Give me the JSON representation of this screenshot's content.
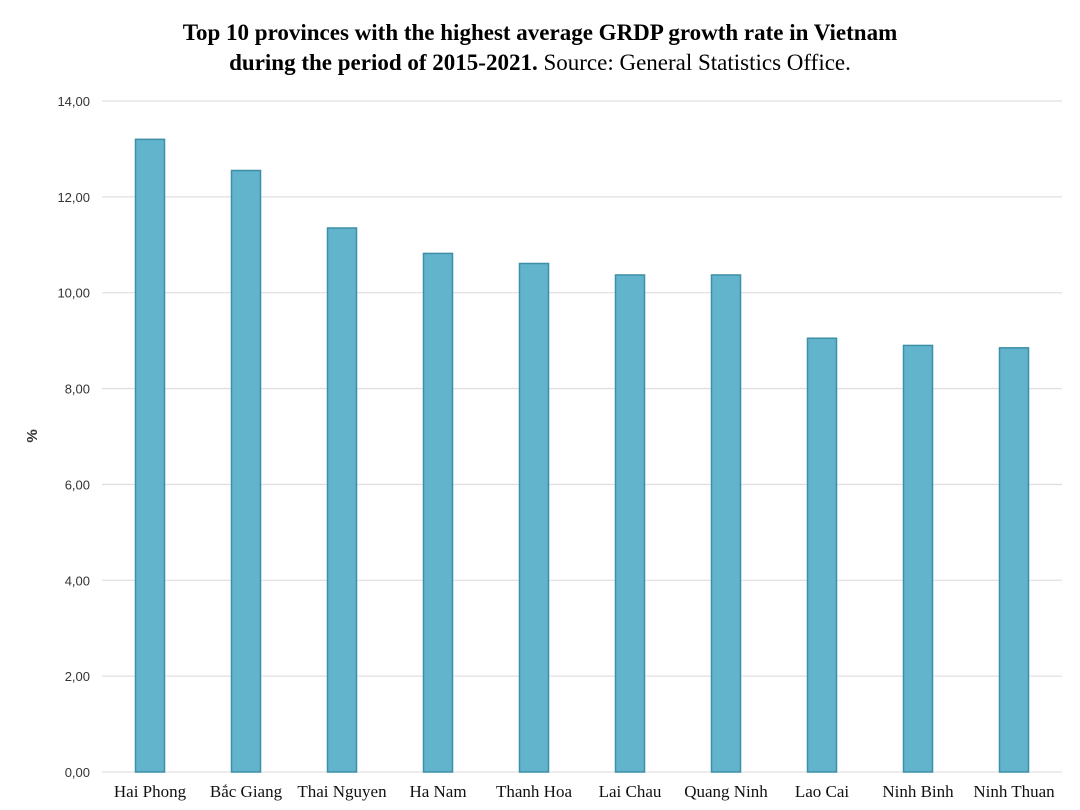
{
  "chart_data": {
    "type": "bar",
    "title_line1": "Top 10 provinces with the highest average GRDP growth rate in Vietnam",
    "title_line2_bold": "during the period of 2015-2021.",
    "title_line2_normal": " Source: General Statistics Office.",
    "ylabel": "%",
    "xlabel": "",
    "ylim": [
      0,
      14
    ],
    "yticks": [
      "0,00",
      "2,00",
      "4,00",
      "6,00",
      "8,00",
      "10,00",
      "12,00",
      "14,00"
    ],
    "ytick_values": [
      0,
      2,
      4,
      6,
      8,
      10,
      12,
      14
    ],
    "grid": true,
    "bar_color": "#62b4cc",
    "bar_edge_color": "#3d8fa8",
    "categories": [
      "Hai Phong",
      "Bắc Giang",
      "Thai Nguyen",
      "Ha Nam",
      "Thanh Hoa",
      "Lai Chau",
      "Quang Ninh",
      "Lao Cai",
      "Ninh Binh",
      "Ninh Thuan"
    ],
    "values": [
      13.2,
      12.55,
      11.35,
      10.82,
      10.61,
      10.37,
      10.37,
      9.05,
      8.9,
      8.85
    ]
  }
}
